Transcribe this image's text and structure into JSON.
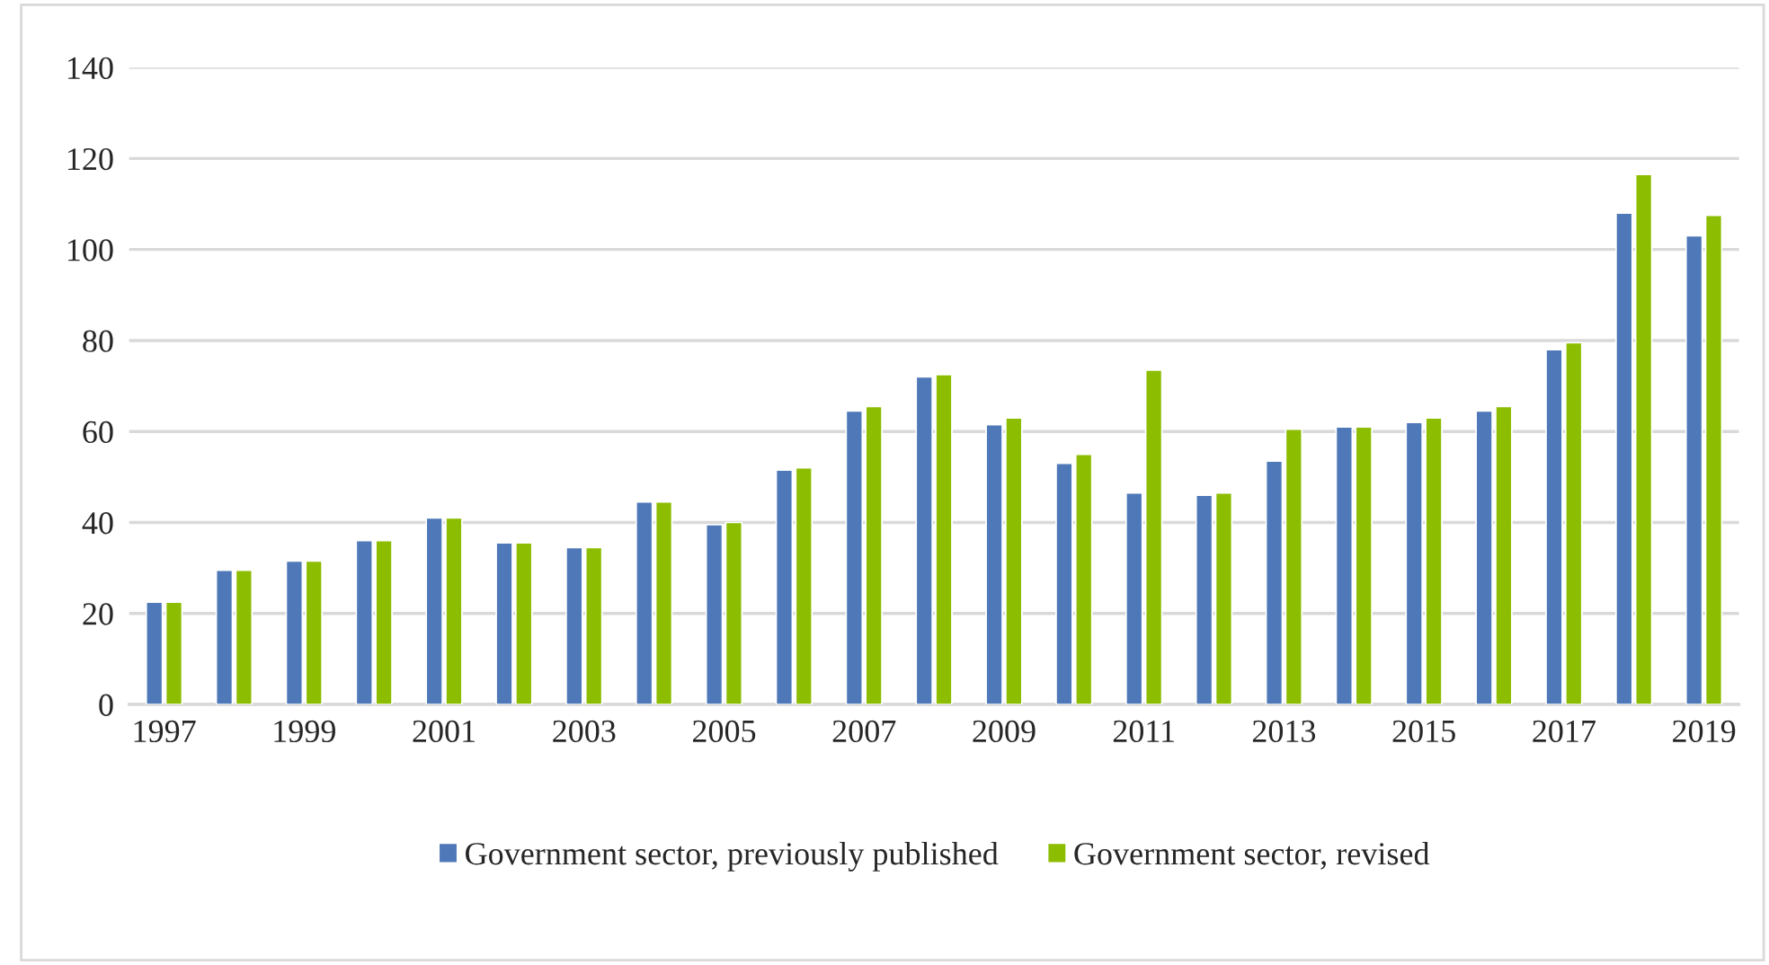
{
  "chart_data": {
    "type": "bar",
    "categories": [
      "1997",
      null,
      "1999",
      null,
      "2001",
      null,
      "2003",
      null,
      "2005",
      null,
      "2007",
      null,
      "2009",
      null,
      "2011",
      null,
      "2013",
      null,
      "2015",
      null,
      "2017",
      null,
      "2019"
    ],
    "series": [
      {
        "name": "Government sector, previously published",
        "color": "#4f78b8",
        "values": [
          22.5,
          29.5,
          31.5,
          36,
          41,
          35.5,
          34.5,
          44.5,
          39.5,
          51.5,
          64.5,
          72,
          61.5,
          53,
          46.5,
          46,
          53.5,
          61,
          62,
          64.5,
          78,
          108,
          103
        ]
      },
      {
        "name": "Government sector, revised",
        "color": "#8cbd00",
        "values": [
          22.5,
          29.5,
          31.5,
          36,
          41,
          35.5,
          34.5,
          44.5,
          40,
          52,
          65.5,
          72.5,
          63,
          55,
          73.5,
          46.5,
          60.5,
          61,
          63,
          65.5,
          79.5,
          116.5,
          107.5
        ]
      }
    ],
    "ylim": [
      0,
      140
    ],
    "yticks": [
      0,
      20,
      40,
      60,
      80,
      100,
      120,
      140
    ],
    "grid": "y",
    "legend": "bottom"
  }
}
